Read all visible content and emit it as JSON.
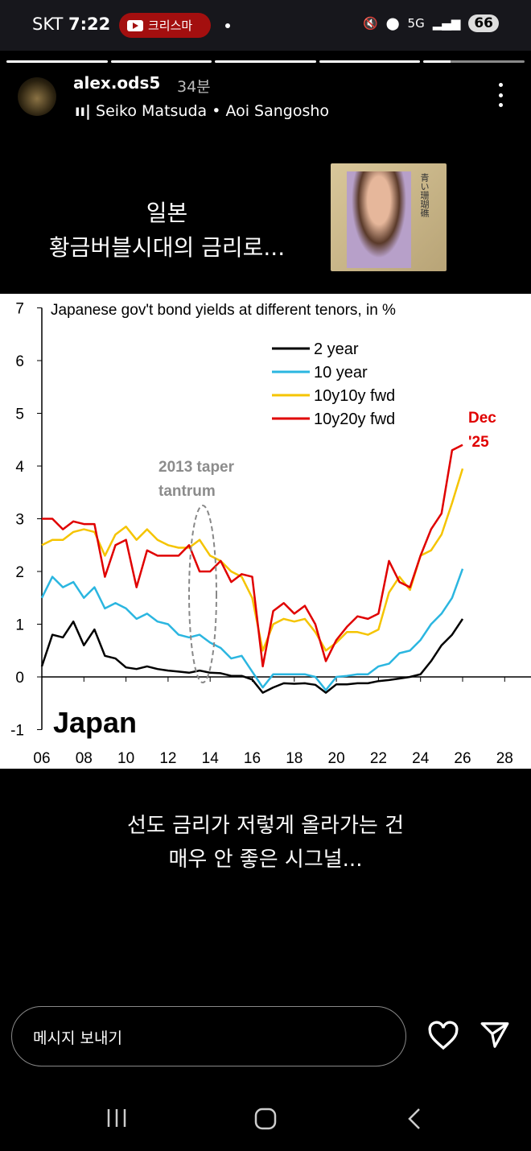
{
  "status_bar": {
    "carrier": "SKT",
    "time": "7:22",
    "youtube_pill": "크리스마",
    "network": "5G",
    "battery": "66"
  },
  "story": {
    "username": "alex.ods5",
    "posted_ago": "34분",
    "music": "Seiko Matsuda • Aoi Sangosho",
    "album_cover_text": "青い珊瑚礁",
    "caption_top": [
      "일본",
      "황금버블시대의 금리로..."
    ],
    "caption_bottom": [
      "선도 금리가 저렇게 올라가는 건",
      "매우 안 좋은 시그널..."
    ],
    "progress_segments": 5,
    "current_segment_progress": 0.27
  },
  "reply": {
    "placeholder": "메시지 보내기"
  },
  "chart_data": {
    "type": "line",
    "title": "Japanese gov't bond yields at different tenors, in %",
    "watermark_label": "Japan",
    "xlim": [
      2006,
      2028
    ],
    "ylim": [
      -1,
      7
    ],
    "x_ticks": [
      "06",
      "08",
      "10",
      "12",
      "14",
      "16",
      "18",
      "20",
      "22",
      "24",
      "26",
      "28"
    ],
    "y_ticks": [
      "-1",
      "0",
      "1",
      "2",
      "3",
      "4",
      "5",
      "6",
      "7"
    ],
    "legend_position": "top-right",
    "grid": false,
    "annotations": [
      {
        "text": "2013 taper tantrum",
        "lines": [
          "2013 taper",
          "tantrum"
        ],
        "x": 2013.5,
        "color": "#8c8c8c"
      },
      {
        "text": "Dec '25",
        "lines": [
          "Dec",
          "'25"
        ],
        "color": "#e00000"
      }
    ],
    "x": [
      2006,
      2006.5,
      2007,
      2007.5,
      2008,
      2008.5,
      2009,
      2009.5,
      2010,
      2010.5,
      2011,
      2011.5,
      2012,
      2012.5,
      2013,
      2013.5,
      2014,
      2014.5,
      2015,
      2015.5,
      2016,
      2016.5,
      2017,
      2017.5,
      2018,
      2018.5,
      2019,
      2019.5,
      2020,
      2020.5,
      2021,
      2021.5,
      2022,
      2022.5,
      2023,
      2023.5,
      2024,
      2024.5,
      2025,
      2025.5,
      2026
    ],
    "series": [
      {
        "name": "2 year",
        "color": "#000000",
        "values": [
          0.2,
          0.8,
          0.75,
          1.05,
          0.6,
          0.9,
          0.4,
          0.35,
          0.18,
          0.15,
          0.2,
          0.15,
          0.12,
          0.1,
          0.08,
          0.12,
          0.08,
          0.07,
          0.02,
          0.02,
          -0.05,
          -0.3,
          -0.2,
          -0.12,
          -0.13,
          -0.12,
          -0.15,
          -0.3,
          -0.14,
          -0.14,
          -0.12,
          -0.12,
          -0.08,
          -0.06,
          -0.03,
          0.0,
          0.05,
          0.3,
          0.6,
          0.8,
          1.1
        ]
      },
      {
        "name": "10 year",
        "color": "#2bb6e0",
        "values": [
          1.5,
          1.9,
          1.7,
          1.8,
          1.5,
          1.7,
          1.3,
          1.4,
          1.3,
          1.1,
          1.2,
          1.05,
          1.0,
          0.8,
          0.75,
          0.8,
          0.65,
          0.55,
          0.35,
          0.4,
          0.1,
          -0.2,
          0.05,
          0.05,
          0.05,
          0.05,
          0.0,
          -0.25,
          0.0,
          0.02,
          0.05,
          0.05,
          0.2,
          0.25,
          0.45,
          0.5,
          0.7,
          1.0,
          1.2,
          1.5,
          2.05
        ]
      },
      {
        "name": "10y10y fwd",
        "color": "#f5c400",
        "values": [
          2.5,
          2.6,
          2.6,
          2.75,
          2.8,
          2.75,
          2.3,
          2.7,
          2.85,
          2.6,
          2.8,
          2.6,
          2.5,
          2.45,
          2.45,
          2.6,
          2.3,
          2.2,
          2.0,
          1.9,
          1.5,
          0.5,
          1.0,
          1.1,
          1.05,
          1.1,
          0.85,
          0.5,
          0.65,
          0.85,
          0.85,
          0.8,
          0.9,
          1.6,
          1.9,
          1.65,
          2.3,
          2.4,
          2.7,
          3.3,
          3.95
        ]
      },
      {
        "name": "10y20y fwd",
        "color": "#e00000",
        "values": [
          3.0,
          3.0,
          2.8,
          2.95,
          2.9,
          2.9,
          1.9,
          2.5,
          2.6,
          1.7,
          2.4,
          2.3,
          2.3,
          2.3,
          2.5,
          2.0,
          2.0,
          2.2,
          1.8,
          1.95,
          1.9,
          0.2,
          1.25,
          1.4,
          1.2,
          1.35,
          1.0,
          0.3,
          0.7,
          0.95,
          1.15,
          1.1,
          1.2,
          2.2,
          1.8,
          1.7,
          2.3,
          2.8,
          3.1,
          4.3,
          4.4
        ]
      }
    ]
  }
}
